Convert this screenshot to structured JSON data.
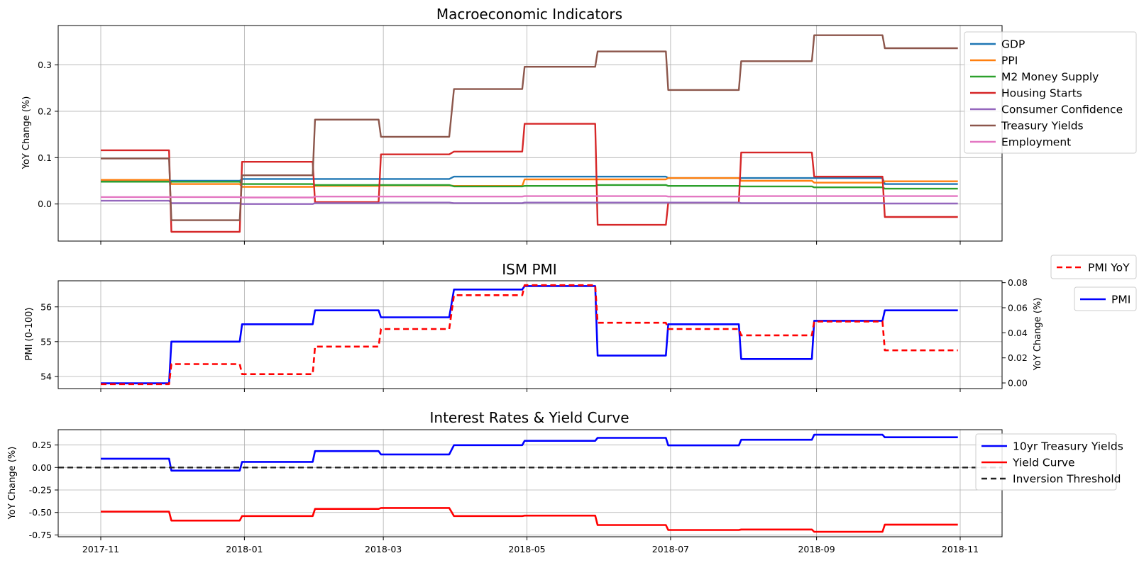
{
  "chart_data": [
    {
      "type": "line",
      "title": "Macroeconomic Indicators",
      "ylabel": "YoY Change (%)",
      "ylim": [
        -0.08,
        0.385
      ],
      "yticks": [
        "0.0",
        "0.1",
        "0.2",
        "0.3"
      ],
      "grid": true,
      "legend_position": "right",
      "x": [
        "2017-11-01",
        "2017-11-30",
        "2017-12-01",
        "2017-12-30",
        "2017-12-31",
        "2018-01-30",
        "2018-01-31",
        "2018-02-27",
        "2018-02-28",
        "2018-03-29",
        "2018-03-31",
        "2018-04-29",
        "2018-04-30",
        "2018-05-30",
        "2018-05-31",
        "2018-06-29",
        "2018-06-30",
        "2018-07-30",
        "2018-07-31",
        "2018-08-30",
        "2018-08-31",
        "2018-09-29",
        "2018-09-30",
        "2018-10-31"
      ],
      "series": [
        {
          "name": "GDP",
          "color": "#1f77b4",
          "values": [
            0.05,
            0.05,
            0.05,
            0.05,
            0.054,
            0.054,
            0.054,
            0.054,
            0.054,
            0.054,
            0.059,
            0.059,
            0.059,
            0.059,
            0.059,
            0.059,
            0.056,
            0.056,
            0.056,
            0.056,
            0.056,
            0.056,
            0.043,
            0.043
          ]
        },
        {
          "name": "PPI",
          "color": "#ff7f0e",
          "values": [
            0.052,
            0.052,
            0.043,
            0.043,
            0.037,
            0.037,
            0.039,
            0.039,
            0.04,
            0.04,
            0.039,
            0.039,
            0.053,
            0.053,
            0.053,
            0.053,
            0.056,
            0.056,
            0.05,
            0.05,
            0.046,
            0.046,
            0.049,
            0.049
          ]
        },
        {
          "name": "M2 Money Supply",
          "color": "#2ca02c",
          "values": [
            0.048,
            0.048,
            0.048,
            0.048,
            0.043,
            0.043,
            0.041,
            0.041,
            0.041,
            0.041,
            0.038,
            0.038,
            0.039,
            0.039,
            0.041,
            0.041,
            0.039,
            0.039,
            0.038,
            0.038,
            0.036,
            0.036,
            0.033,
            0.033
          ]
        },
        {
          "name": "Housing Starts",
          "color": "#d62728",
          "values": [
            0.116,
            0.116,
            -0.06,
            -0.06,
            0.091,
            0.091,
            0.004,
            0.004,
            0.107,
            0.107,
            0.113,
            0.113,
            0.173,
            0.173,
            -0.045,
            -0.045,
            0.003,
            0.003,
            0.111,
            0.111,
            0.059,
            0.059,
            -0.028,
            -0.028
          ]
        },
        {
          "name": "Consumer Confidence",
          "color": "#9467bd",
          "values": [
            0.007,
            0.007,
            0.002,
            0.002,
            0.0,
            0.0,
            0.002,
            0.002,
            0.003,
            0.003,
            0.002,
            0.002,
            0.003,
            0.003,
            0.003,
            0.003,
            0.003,
            0.003,
            0.002,
            0.002,
            0.002,
            0.002,
            0.001,
            0.001
          ]
        },
        {
          "name": "Treasury Yields",
          "color": "#8c564b",
          "values": [
            0.098,
            0.098,
            -0.035,
            -0.035,
            0.062,
            0.062,
            0.182,
            0.182,
            0.145,
            0.145,
            0.248,
            0.248,
            0.296,
            0.296,
            0.329,
            0.329,
            0.246,
            0.246,
            0.308,
            0.308,
            0.364,
            0.364,
            0.336,
            0.336
          ]
        },
        {
          "name": "Employment",
          "color": "#e377c2",
          "values": [
            0.015,
            0.015,
            0.015,
            0.015,
            0.014,
            0.014,
            0.016,
            0.016,
            0.016,
            0.016,
            0.016,
            0.016,
            0.017,
            0.017,
            0.017,
            0.017,
            0.016,
            0.016,
            0.017,
            0.017,
            0.017,
            0.017,
            0.017,
            0.017
          ]
        }
      ]
    },
    {
      "type": "line",
      "title": "ISM PMI",
      "ylabel": "PMI (0-100)",
      "ylabel_right": "YoY Change (%)",
      "ylim": [
        53.65,
        56.75
      ],
      "ylim_right": [
        -0.0045,
        0.0815
      ],
      "yticks": [
        "54",
        "55",
        "56"
      ],
      "yticks_right": [
        "0.00",
        "0.02",
        "0.04",
        "0.06",
        "0.08"
      ],
      "grid": true,
      "x": [
        "2017-11-01",
        "2017-11-30",
        "2017-12-01",
        "2017-12-30",
        "2017-12-31",
        "2018-01-30",
        "2018-01-31",
        "2018-02-27",
        "2018-02-28",
        "2018-03-29",
        "2018-03-31",
        "2018-04-29",
        "2018-04-30",
        "2018-05-30",
        "2018-05-31",
        "2018-06-29",
        "2018-06-30",
        "2018-07-30",
        "2018-07-31",
        "2018-08-30",
        "2018-08-31",
        "2018-09-29",
        "2018-09-30",
        "2018-10-31"
      ],
      "series": [
        {
          "name": "PMI",
          "axis": "left",
          "color": "#0000ff",
          "style": "solid",
          "values": [
            53.8,
            53.8,
            55.0,
            55.0,
            55.5,
            55.5,
            55.9,
            55.9,
            55.7,
            55.7,
            56.5,
            56.5,
            56.6,
            56.6,
            54.6,
            54.6,
            55.5,
            55.5,
            54.5,
            54.5,
            55.6,
            55.6,
            55.9,
            55.9
          ]
        },
        {
          "name": "PMI YoY",
          "axis": "right",
          "color": "#ff0000",
          "style": "dashed",
          "values": [
            -0.001,
            -0.001,
            0.015,
            0.015,
            0.007,
            0.007,
            0.029,
            0.029,
            0.043,
            0.043,
            0.07,
            0.07,
            0.078,
            0.078,
            0.048,
            0.048,
            0.043,
            0.043,
            0.038,
            0.038,
            0.049,
            0.049,
            0.026,
            0.026
          ]
        }
      ]
    },
    {
      "type": "line",
      "title": "Interest Rates & Yield Curve",
      "ylabel": "YoY Change (%)",
      "ylim": [
        -0.77,
        0.42
      ],
      "yticks": [
        "-0.75",
        "-0.50",
        "-0.25",
        "0.00",
        "0.25"
      ],
      "xticks": [
        "2017-11",
        "2018-01",
        "2018-03",
        "2018-05",
        "2018-07",
        "2018-09",
        "2018-11"
      ],
      "grid": true,
      "x": [
        "2017-11-01",
        "2017-11-30",
        "2017-12-01",
        "2017-12-30",
        "2017-12-31",
        "2018-01-30",
        "2018-01-31",
        "2018-02-27",
        "2018-02-28",
        "2018-03-29",
        "2018-03-31",
        "2018-04-29",
        "2018-04-30",
        "2018-05-30",
        "2018-05-31",
        "2018-06-29",
        "2018-06-30",
        "2018-07-30",
        "2018-07-31",
        "2018-08-30",
        "2018-08-31",
        "2018-09-29",
        "2018-09-30",
        "2018-10-31"
      ],
      "series": [
        {
          "name": "10yr Treasury Yields",
          "color": "#0000ff",
          "style": "solid",
          "values": [
            0.098,
            0.098,
            -0.035,
            -0.035,
            0.062,
            0.062,
            0.182,
            0.182,
            0.145,
            0.145,
            0.248,
            0.248,
            0.296,
            0.296,
            0.329,
            0.329,
            0.246,
            0.246,
            0.308,
            0.308,
            0.364,
            0.364,
            0.336,
            0.336
          ]
        },
        {
          "name": "Yield Curve",
          "color": "#ff0000",
          "style": "solid",
          "values": [
            -0.49,
            -0.49,
            -0.59,
            -0.59,
            -0.54,
            -0.54,
            -0.46,
            -0.46,
            -0.45,
            -0.45,
            -0.54,
            -0.54,
            -0.535,
            -0.535,
            -0.64,
            -0.64,
            -0.695,
            -0.695,
            -0.69,
            -0.69,
            -0.715,
            -0.715,
            -0.635,
            -0.635
          ]
        },
        {
          "name": "Inversion Threshold",
          "color": "#222222",
          "style": "dashed",
          "constant": 0.0
        }
      ]
    }
  ]
}
